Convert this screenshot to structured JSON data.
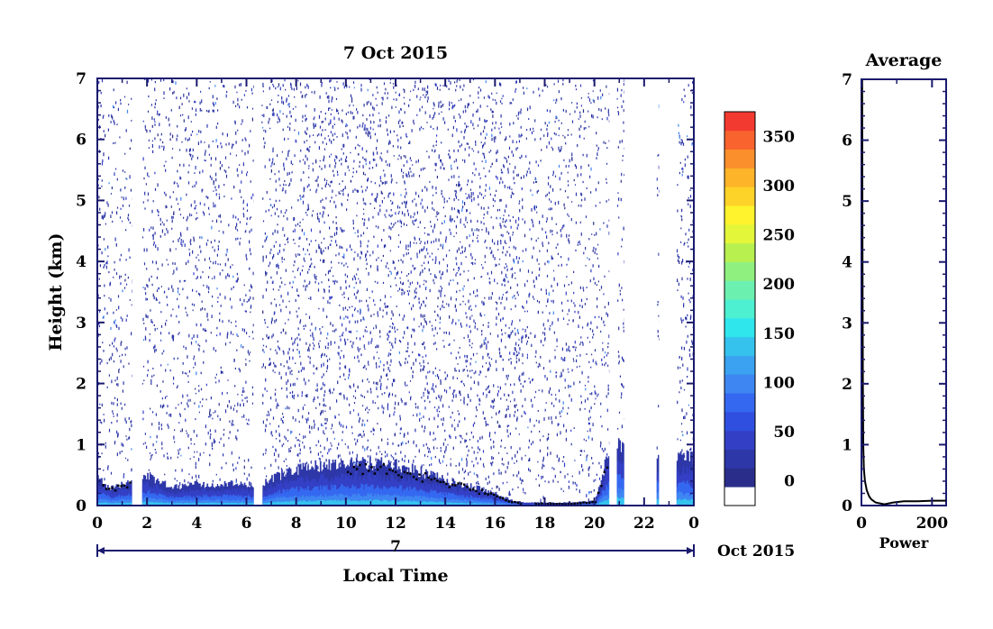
{
  "chart_data": [
    {
      "type": "heatmap",
      "title": "7 Oct 2015",
      "xlabel": "Local Time",
      "ylabel": "Height (km)",
      "xlim": [
        0,
        24
      ],
      "ylim": [
        0,
        7
      ],
      "x_ticks": [
        "0",
        "2",
        "4",
        "6",
        "8",
        "10",
        "12",
        "14",
        "16",
        "18",
        "20",
        "22",
        "0"
      ],
      "y_ticks": [
        "0",
        "1",
        "2",
        "3",
        "4",
        "5",
        "6",
        "7"
      ],
      "date_axis": {
        "day_label": "7",
        "month_label": "Oct 2015"
      },
      "no_data_gaps_hours": [
        [
          1.4,
          1.8
        ],
        [
          6.3,
          6.6
        ],
        [
          20.6,
          20.9
        ],
        [
          21.2,
          22.5
        ],
        [
          22.6,
          23.3
        ]
      ],
      "boundary_layer": {
        "x": [
          0,
          0.5,
          1.0,
          1.5,
          2,
          3,
          4,
          5,
          6,
          6.5,
          7,
          8,
          9,
          10,
          11,
          12,
          13,
          14,
          15,
          16,
          16.5,
          17,
          18,
          19,
          20,
          20.6,
          21,
          22,
          23,
          24
        ],
        "top_km": [
          0.45,
          0.3,
          0.35,
          0.45,
          0.5,
          0.3,
          0.35,
          0.35,
          0.35,
          0.3,
          0.45,
          0.6,
          0.65,
          0.68,
          0.7,
          0.65,
          0.55,
          0.42,
          0.32,
          0.2,
          0.1,
          0.05,
          0.05,
          0.05,
          0.08,
          0.95,
          1.0,
          0.9,
          0.85,
          0.75
        ]
      },
      "colorbar": {
        "ticks": [
          "0",
          "50",
          "100",
          "150",
          "200",
          "250",
          "300",
          "350"
        ],
        "range": [
          -25,
          375
        ],
        "colors": [
          "#ffffff",
          "#2a2e8a",
          "#2d37a8",
          "#3340c5",
          "#2f4fe0",
          "#3568f0",
          "#3e86f2",
          "#3aa2f0",
          "#35c3ee",
          "#2ee6ec",
          "#4df0d0",
          "#6cf0b0",
          "#8ff080",
          "#b8f050",
          "#e4f63a",
          "#fef32c",
          "#fed329",
          "#fdb429",
          "#fb8f2b",
          "#f8632e",
          "#f33a30"
        ]
      }
    },
    {
      "type": "line",
      "title": "Average",
      "xlabel": "Power",
      "x_ticks": [
        "0",
        "200"
      ],
      "y_ticks": [
        "0",
        "1",
        "2",
        "3",
        "4",
        "5",
        "6",
        "7"
      ],
      "xlim": [
        0,
        240
      ],
      "ylim": [
        0,
        7
      ],
      "series": [
        {
          "x": [
            65,
            40,
            28,
            22,
            15,
            10,
            7,
            5,
            4,
            3,
            2
          ],
          "y": [
            0.02,
            0.05,
            0.1,
            0.15,
            0.25,
            0.4,
            0.6,
            1.0,
            2.0,
            4.0,
            7.0
          ]
        },
        {
          "x": [
            65,
            90,
            120,
            160,
            200,
            240
          ],
          "y": [
            0.02,
            0.05,
            0.07,
            0.07,
            0.08,
            0.08
          ]
        }
      ]
    }
  ]
}
